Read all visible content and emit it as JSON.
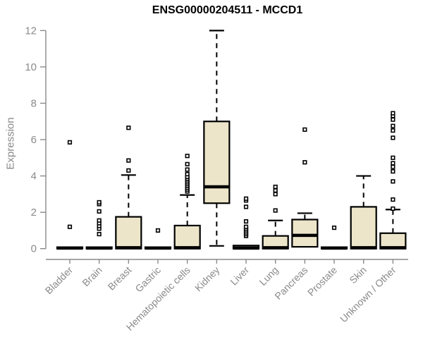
{
  "chart_data": {
    "type": "boxplot",
    "title": "ENSG00000204511 - MCCD1",
    "ylabel": "Expression",
    "xlabel": "",
    "ylim": [
      0,
      12
    ],
    "yticks": [
      0,
      2,
      4,
      6,
      8,
      10,
      12
    ],
    "grid": "off",
    "legend": "none",
    "colors": {
      "box_fill": "#ece5c9",
      "box_stroke": "#000000",
      "axis": "#8a8a8a",
      "tick_text": "#8a8a8a",
      "title_text": "#000000",
      "background": "#ffffff"
    },
    "categories": [
      "Bladder",
      "Brain",
      "Breast",
      "Gastric",
      "Hematopoietic cells",
      "Kidney",
      "Liver",
      "Lung",
      "Pancreas",
      "Prostate",
      "Skin",
      "Unknown / Other"
    ],
    "series": [
      {
        "label": "Bladder",
        "q1": 0,
        "median": 0.03,
        "q3": 0.08,
        "whisker_low": 0,
        "whisker_high": 0.08,
        "outliers": [
          1.2,
          5.85
        ]
      },
      {
        "label": "Brain",
        "q1": 0,
        "median": 0.03,
        "q3": 0.08,
        "whisker_low": 0,
        "whisker_high": 0.08,
        "outliers": [
          0.8,
          1.1,
          1.25,
          1.4,
          1.55,
          2.05,
          2.45,
          2.55
        ]
      },
      {
        "label": "Breast",
        "q1": 0,
        "median": 0.05,
        "q3": 1.75,
        "whisker_low": 0,
        "whisker_high": 4.05,
        "outliers": [
          4.3,
          4.85,
          6.65
        ]
      },
      {
        "label": "Gastric",
        "q1": 0,
        "median": 0.03,
        "q3": 0.08,
        "whisker_low": 0,
        "whisker_high": 0.08,
        "outliers": [
          1.0
        ]
      },
      {
        "label": "Hematopoietic cells",
        "q1": 0,
        "median": 0.05,
        "q3": 1.27,
        "whisker_low": 0,
        "whisker_high": 2.95,
        "outliers": [
          3.15,
          3.25,
          3.35,
          3.45,
          3.55,
          3.65,
          3.75,
          3.85,
          3.95,
          4.1,
          4.35,
          4.65,
          5.1
        ]
      },
      {
        "label": "Kidney",
        "q1": 2.5,
        "median": 3.4,
        "q3": 7.0,
        "whisker_low": 0.15,
        "whisker_high": 12.0,
        "outliers": []
      },
      {
        "label": "Liver",
        "q1": 0,
        "median": 0.03,
        "q3": 0.17,
        "whisker_low": 0,
        "whisker_high": 0.17,
        "outliers": [
          0.7,
          0.8,
          0.9,
          1.0,
          1.1,
          1.2,
          1.5,
          2.3,
          2.65,
          2.75
        ]
      },
      {
        "label": "Lung",
        "q1": 0,
        "median": 0.05,
        "q3": 0.7,
        "whisker_low": 0,
        "whisker_high": 1.55,
        "outliers": [
          2.1,
          3.0,
          3.2,
          3.4
        ]
      },
      {
        "label": "Pancreas",
        "q1": 0.1,
        "median": 0.73,
        "q3": 1.6,
        "whisker_low": 0.1,
        "whisker_high": 1.95,
        "outliers": [
          4.75,
          6.55
        ]
      },
      {
        "label": "Prostate",
        "q1": 0,
        "median": 0.03,
        "q3": 0.08,
        "whisker_low": 0,
        "whisker_high": 0.08,
        "outliers": [
          1.15
        ]
      },
      {
        "label": "Skin",
        "q1": 0,
        "median": 0.05,
        "q3": 2.3,
        "whisker_low": 0,
        "whisker_high": 4.0,
        "outliers": []
      },
      {
        "label": "Unknown / Other",
        "q1": 0,
        "median": 0.05,
        "q3": 0.85,
        "whisker_low": 0,
        "whisker_high": 2.15,
        "outliers": [
          2.2,
          2.7,
          3.7,
          4.25,
          4.5,
          4.7,
          5.0,
          6.1,
          6.5,
          6.75,
          7.1,
          7.3,
          7.45
        ]
      }
    ]
  }
}
